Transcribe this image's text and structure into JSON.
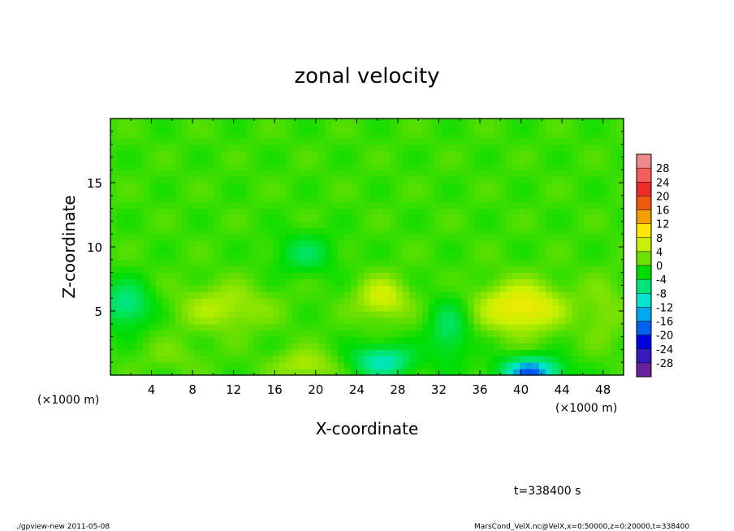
{
  "chart_data": {
    "type": "heatmap",
    "title": "zonal velocity",
    "xlabel": "X-coordinate",
    "ylabel": "Z-coordinate",
    "x_unit_note": "(×1000 m)",
    "x_unit_note_right": "(×1000 m)",
    "xlim": [
      0,
      50
    ],
    "ylim": [
      0,
      20
    ],
    "x_ticks": [
      "4",
      "8",
      "12",
      "16",
      "20",
      "24",
      "28",
      "32",
      "36",
      "40",
      "44",
      "48"
    ],
    "y_ticks": [
      "5",
      "10",
      "15"
    ],
    "colorbar": {
      "labels": [
        "28",
        "24",
        "20",
        "16",
        "12",
        "8",
        "4",
        "0",
        "-4",
        "-8",
        "-12",
        "-16",
        "-20",
        "-24",
        "-28"
      ],
      "range": [
        -30,
        30
      ]
    },
    "blobs": [
      {
        "x": 40,
        "z": 5.3,
        "sx": 4.0,
        "sz": 1.9,
        "v": 10
      },
      {
        "x": 26.5,
        "z": 6.0,
        "sx": 2.5,
        "sz": 1.6,
        "v": 7
      },
      {
        "x": 41,
        "z": 0.3,
        "sx": 3.0,
        "sz": 1.1,
        "v": -15
      },
      {
        "x": 26.5,
        "z": 1.1,
        "sx": 3.0,
        "sz": 1.3,
        "v": -10
      },
      {
        "x": 1.5,
        "z": 5.5,
        "sx": 2.5,
        "sz": 1.8,
        "v": -8
      },
      {
        "x": 19,
        "z": 9.5,
        "sx": 3.0,
        "sz": 1.6,
        "v": -5
      },
      {
        "x": 11,
        "z": 5.3,
        "sx": 4.5,
        "sz": 1.8,
        "v": 5
      },
      {
        "x": 19,
        "z": 0.8,
        "sx": 3.0,
        "sz": 1.2,
        "v": 5
      },
      {
        "x": 33,
        "z": 3.5,
        "sx": 2.0,
        "sz": 2.5,
        "v": -6
      },
      {
        "x": 6,
        "z": 1.5,
        "sx": 3.0,
        "sz": 1.2,
        "v": 2
      },
      {
        "x": 48,
        "z": 5.0,
        "sx": 2.0,
        "sz": 2.5,
        "v": 3
      }
    ],
    "background_value": 1.0,
    "time_label": "t=338400 s"
  },
  "footer": {
    "left": "./gpview-new  2011-05-08",
    "right": "MarsCond_VelX.nc@VelX,x=0:50000,z=0:20000,t=338400"
  }
}
